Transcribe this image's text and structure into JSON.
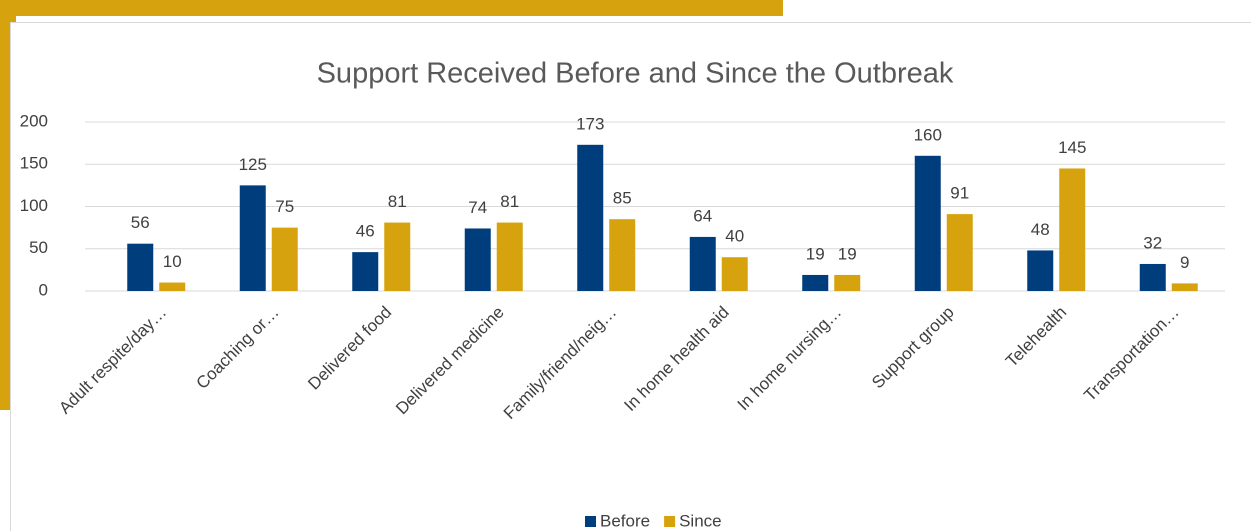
{
  "chart_data": {
    "type": "bar",
    "title": "Support Received Before and Since the Outbreak",
    "categories": [
      "Adult respite/day…",
      "Coaching or…",
      "Delivered food",
      "Delivered medicine",
      "Family/friend/neig…",
      "In home health aid",
      "In home nursing…",
      "Support group",
      "Telehealth",
      "Transportation…"
    ],
    "series": [
      {
        "name": "Before",
        "color": "#003d7c",
        "values": [
          56,
          125,
          46,
          74,
          173,
          64,
          19,
          160,
          48,
          32
        ]
      },
      {
        "name": "Since",
        "color": "#d6a30f",
        "values": [
          10,
          75,
          81,
          81,
          85,
          40,
          19,
          91,
          145,
          9
        ]
      }
    ],
    "ylim": [
      0,
      200
    ],
    "yticks": [
      0,
      50,
      100,
      150,
      200
    ],
    "grid": true,
    "legend": "bottom"
  }
}
